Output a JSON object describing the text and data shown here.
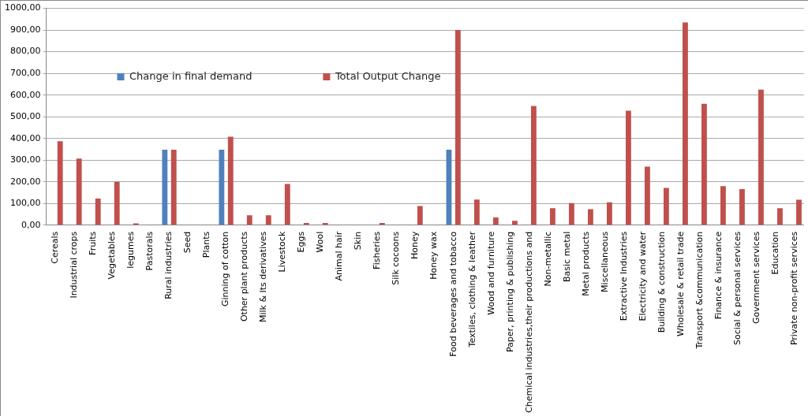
{
  "chart_data": {
    "type": "bar",
    "categories": [
      "Cereals",
      "Industrial crops",
      "Fruits",
      "Vegetables",
      "legumes",
      "Pastorals",
      "Rural industries",
      "Seed",
      "Plants",
      "Ginning of cotton",
      "Other plant products",
      "Milk & Its derivatives",
      "Livestock",
      "Eggs",
      "Wool",
      "Animal hair",
      "Skin",
      "Fisheries",
      "Silk cocoons",
      "Honey",
      "Honey wax",
      "Food beverages and tobacco",
      "Textiles, clothing & leather",
      "Wood and furniture",
      "Paper, printing & publishing",
      "Chemical industries,their productions and",
      "Non-metallic",
      "Basic metal",
      "Metal products",
      "Miscellaneous",
      "Extractive Industries",
      "Electricity and water",
      "Building & construction",
      "Wholesale & retail trade",
      "Transport &communication",
      "Finance & insurance",
      "Social & personal services",
      "Government services",
      "Education",
      "Private non-profit services"
    ],
    "series": [
      {
        "name": "Change in final demand",
        "color": "#4f81bd",
        "values": [
          0,
          0,
          0,
          0,
          0,
          0,
          348,
          0,
          0,
          348,
          0,
          0,
          0,
          0,
          0,
          0,
          0,
          0,
          0,
          0,
          0,
          348,
          0,
          0,
          0,
          0,
          0,
          0,
          0,
          0,
          0,
          0,
          0,
          0,
          0,
          0,
          0,
          0,
          0,
          0
        ]
      },
      {
        "name": "Total Output Change",
        "color": "#c0504d",
        "values": [
          387,
          307,
          123,
          200,
          8,
          0,
          348,
          0,
          0,
          408,
          45,
          45,
          190,
          10,
          10,
          0,
          0,
          10,
          0,
          88,
          0,
          900,
          118,
          35,
          20,
          550,
          78,
          102,
          74,
          105,
          528,
          270,
          172,
          935,
          560,
          180,
          166,
          625,
          78,
          117
        ]
      }
    ],
    "ylim": [
      0,
      1000
    ],
    "yticks": [
      {
        "value": 0,
        "label": "0,00"
      },
      {
        "value": 100,
        "label": "100,00"
      },
      {
        "value": 200,
        "label": "200,00"
      },
      {
        "value": 300,
        "label": "300,00"
      },
      {
        "value": 400,
        "label": "400,00"
      },
      {
        "value": 500,
        "label": "500,00"
      },
      {
        "value": 600,
        "label": "600,00"
      },
      {
        "value": 700,
        "label": "700,00"
      },
      {
        "value": 800,
        "label": "800,00"
      },
      {
        "value": 900,
        "label": "900,00"
      },
      {
        "value": 1000,
        "label": "1000,00"
      }
    ],
    "grid": "y",
    "legend": "top left"
  }
}
